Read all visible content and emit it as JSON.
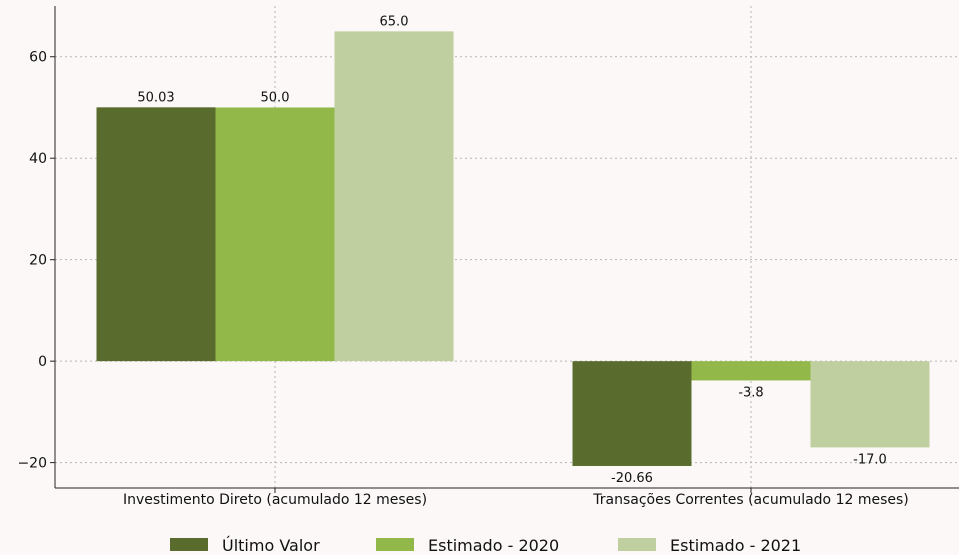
{
  "chart_data": {
    "type": "bar",
    "categories": [
      "Investimento Direto (acumulado 12 meses)",
      "Transações Correntes (acumulado 12 meses)"
    ],
    "series": [
      {
        "name": "Último Valor",
        "values": [
          50.03,
          -20.66
        ],
        "labels": [
          "50.03",
          "-20.66"
        ],
        "color": "#5a6b2e"
      },
      {
        "name": "Estimado - 2020",
        "values": [
          50.0,
          -3.8
        ],
        "labels": [
          "50.0",
          "-3.8"
        ],
        "color": "#92b84a"
      },
      {
        "name": "Estimado - 2021",
        "values": [
          65.0,
          -17.0
        ],
        "labels": [
          "65.0",
          "-17.0"
        ],
        "color": "#bfcf9f"
      }
    ],
    "ylim": [
      -25,
      70
    ],
    "yticks": [
      -20,
      0,
      20,
      40,
      60
    ],
    "ytick_labels": [
      "−20",
      "0",
      "20",
      "40",
      "60"
    ],
    "grid": true,
    "legend_position": "bottom",
    "xlabel": "",
    "ylabel": ""
  }
}
